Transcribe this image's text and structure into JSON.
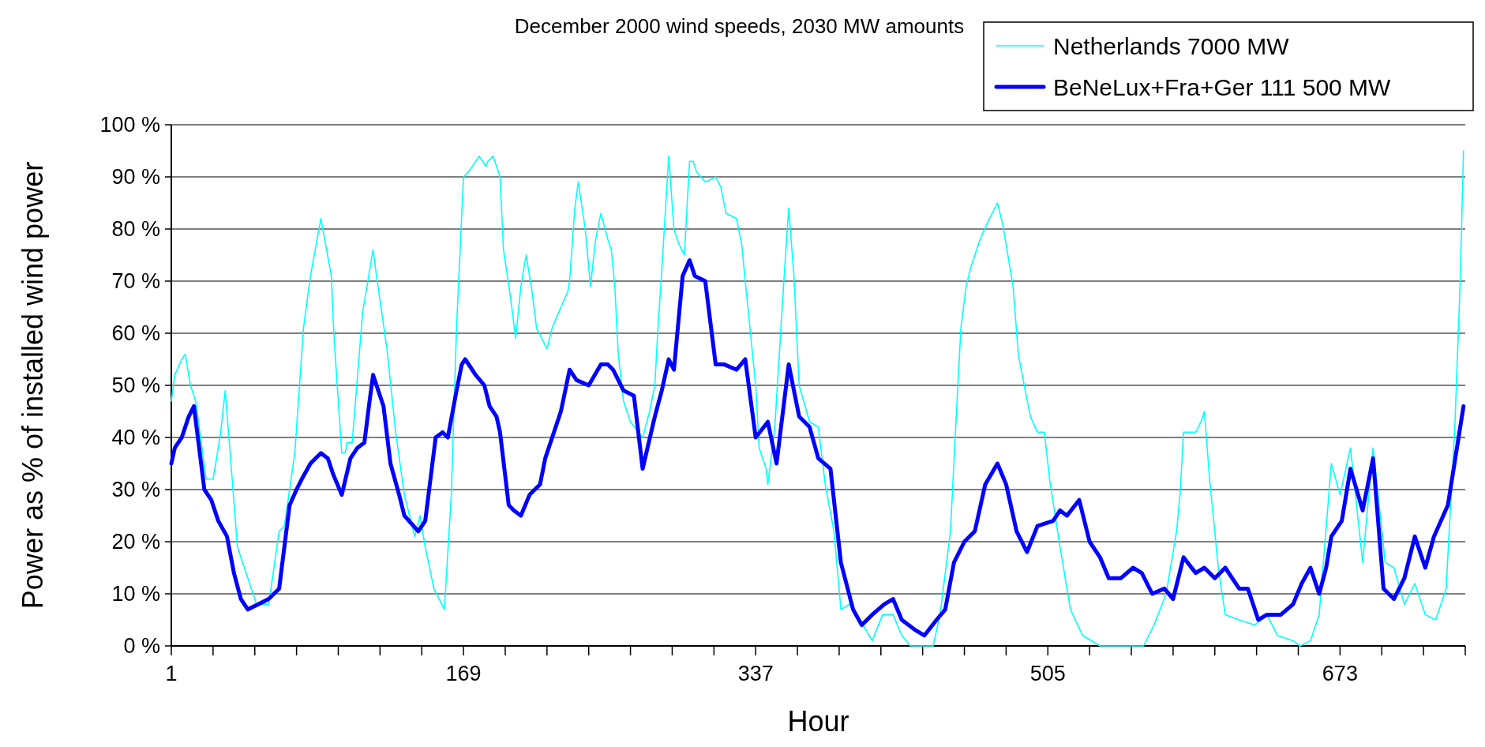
{
  "chart_data": {
    "type": "line",
    "title": "December 2000 wind speeds, 2030 MW amounts",
    "xlabel": "Hour",
    "ylabel": "Power as % of installed wind power",
    "xlim": [
      1,
      745
    ],
    "xticks": [
      1,
      {
        "value": 25,
        "label": null
      },
      {
        "value": 49,
        "label": null
      },
      {
        "value": 73,
        "label": null
      },
      {
        "value": 97,
        "label": null
      },
      {
        "value": 121,
        "label": null
      },
      {
        "value": 145,
        "label": null
      },
      169,
      {
        "value": 193,
        "label": null
      },
      {
        "value": 217,
        "label": null
      },
      {
        "value": 241,
        "label": null
      },
      {
        "value": 265,
        "label": null
      },
      {
        "value": 289,
        "label": null
      },
      {
        "value": 313,
        "label": null
      },
      337,
      {
        "value": 361,
        "label": null
      },
      {
        "value": 385,
        "label": null
      },
      {
        "value": 409,
        "label": null
      },
      {
        "value": 433,
        "label": null
      },
      {
        "value": 457,
        "label": null
      },
      {
        "value": 481,
        "label": null
      },
      505,
      {
        "value": 529,
        "label": null
      },
      {
        "value": 553,
        "label": null
      },
      {
        "value": 577,
        "label": null
      },
      {
        "value": 601,
        "label": null
      },
      {
        "value": 625,
        "label": null
      },
      {
        "value": 649,
        "label": null
      },
      673,
      {
        "value": 697,
        "label": null
      },
      {
        "value": 721,
        "label": null
      },
      {
        "value": 745,
        "label": null
      }
    ],
    "ylim": [
      0,
      100
    ],
    "yticks": [
      {
        "value": 0,
        "label": "0 %"
      },
      {
        "value": 10,
        "label": "10 %"
      },
      {
        "value": 20,
        "label": "20 %"
      },
      {
        "value": 30,
        "label": "30 %"
      },
      {
        "value": 40,
        "label": "40 %"
      },
      {
        "value": 50,
        "label": "50 %"
      },
      {
        "value": 60,
        "label": "60 %"
      },
      {
        "value": 70,
        "label": "70 %"
      },
      {
        "value": 80,
        "label": "80 %"
      },
      {
        "value": 90,
        "label": "90 %"
      },
      {
        "value": 100,
        "label": "100 %"
      }
    ],
    "grid": "y",
    "legend": "top right",
    "marker": "none",
    "series": [
      {
        "name": "Netherlands 7000 MW",
        "color": "#00ffff",
        "x": [
          1,
          3,
          7,
          9,
          12,
          15,
          21,
          25,
          29,
          32,
          36,
          39,
          44,
          48,
          50,
          57,
          63,
          66,
          72,
          77,
          81,
          87,
          93,
          94,
          95,
          99,
          101,
          102,
          105,
          111,
          115,
          117,
          119,
          125,
          130,
          135,
          138,
          141,
          144,
          147,
          152,
          158,
          162,
          165,
          169,
          172,
          176,
          178,
          182,
          183,
          186,
          190,
          192,
          196,
          199,
          202,
          205,
          208,
          211,
          214,
          217,
          220,
          225,
          229,
          230,
          233,
          235,
          239,
          242,
          245,
          248,
          252,
          254,
          256,
          258,
          261,
          265,
          272,
          276,
          279,
          281,
          283,
          287,
          290,
          293,
          296,
          299,
          301,
          303,
          308,
          314,
          317,
          320,
          326,
          329,
          331,
          334,
          337,
          339,
          343,
          344,
          348,
          353,
          356,
          359,
          362,
          368,
          373,
          377,
          382,
          386,
          391,
          397,
          404,
          410,
          416,
          421,
          426,
          439,
          443,
          449,
          452,
          455,
          458,
          461,
          466,
          470,
          476,
          479,
          485,
          488,
          492,
          495,
          499,
          503,
          506,
          512,
          518,
          525,
          535,
          560,
          566,
          573,
          579,
          581,
          583,
          590,
          593,
          595,
          598,
          603,
          607,
          615,
          624,
          631,
          637,
          646,
          650,
          656,
          661,
          668,
          673,
          679,
          686,
          692,
          699,
          704,
          710,
          716,
          722,
          728,
          734,
          739,
          742,
          744
        ],
        "values": [
          47,
          52,
          55,
          56,
          50,
          47,
          32,
          32,
          40,
          49,
          32,
          19,
          14,
          10,
          8,
          8,
          22,
          23,
          37,
          61,
          71,
          82,
          71,
          63,
          57,
          37,
          37,
          39,
          39,
          64,
          72,
          76,
          71,
          57,
          41,
          29,
          25,
          21,
          25,
          19,
          11,
          7,
          29,
          61,
          90,
          91,
          93,
          94,
          92,
          93,
          94,
          90,
          76,
          67,
          59,
          69,
          75,
          69,
          61,
          59,
          57,
          61,
          65,
          68,
          70,
          84,
          89,
          80,
          69,
          78,
          83,
          78,
          76,
          69,
          56,
          47,
          43,
          40,
          45,
          50,
          62,
          72,
          94,
          80,
          77,
          75,
          93,
          93,
          91,
          89,
          90,
          88,
          83,
          82,
          77,
          70,
          60,
          50,
          38,
          34,
          31,
          42,
          69,
          84,
          71,
          50,
          43,
          42,
          31,
          22,
          7,
          8,
          5,
          1,
          6,
          6,
          2,
          0,
          0,
          6,
          22,
          42,
          61,
          69,
          73,
          78,
          81,
          85,
          81,
          69,
          56,
          49,
          44,
          41,
          41,
          32,
          19,
          7,
          2,
          0,
          0,
          4,
          10,
          22,
          29,
          41,
          41,
          43,
          45,
          32,
          15,
          6,
          5,
          4,
          6,
          2,
          1,
          0,
          1,
          6,
          35,
          29,
          38,
          16,
          38,
          16,
          15,
          8,
          12,
          6,
          5,
          11,
          42,
          69,
          95
        ]
      },
      {
        "name": "BeNeLux+Fra+Ger 111 500 MW",
        "color": "#0000ff",
        "x": [
          1,
          3,
          7,
          11,
          14,
          20,
          24,
          28,
          33,
          37,
          41,
          45,
          51,
          57,
          63,
          66,
          69,
          73,
          76,
          81,
          87,
          91,
          94,
          99,
          104,
          108,
          112,
          115,
          117,
          123,
          127,
          132,
          135,
          143,
          147,
          150,
          153,
          157,
          160,
          165,
          168,
          170,
          176,
          181,
          184,
          188,
          190,
          195,
          198,
          202,
          207,
          213,
          216,
          220,
          225,
          230,
          234,
          241,
          248,
          252,
          255,
          261,
          267,
          272,
          279,
          283,
          287,
          290,
          295,
          299,
          302,
          308,
          314,
          319,
          326,
          331,
          337,
          344,
          349,
          356,
          362,
          368,
          373,
          380,
          386,
          393,
          398,
          404,
          411,
          416,
          421,
          429,
          434,
          441,
          446,
          451,
          457,
          463,
          465,
          469,
          476,
          481,
          487,
          493,
          499,
          508,
          512,
          516,
          523,
          529,
          535,
          540,
          547,
          554,
          559,
          565,
          572,
          577,
          583,
          590,
          595,
          601,
          607,
          615,
          620,
          626,
          631,
          639,
          646,
          651,
          656,
          661,
          665,
          668,
          674,
          679,
          686,
          692,
          698,
          704,
          710,
          716,
          722,
          727,
          735,
          744
        ],
        "values": [
          35,
          38,
          40,
          44,
          46,
          30,
          28,
          24,
          21,
          14,
          9,
          7,
          8,
          9,
          11,
          19,
          27,
          30,
          32,
          35,
          37,
          36,
          33,
          29,
          36,
          38,
          39,
          47,
          52,
          46,
          35,
          29,
          25,
          22,
          24,
          32,
          40,
          41,
          40,
          49,
          54,
          55,
          52,
          50,
          46,
          44,
          41,
          27,
          26,
          25,
          29,
          31,
          36,
          40,
          45,
          53,
          51,
          50,
          54,
          54,
          53,
          49,
          48,
          34,
          44,
          49,
          55,
          53,
          71,
          74,
          71,
          70,
          54,
          54,
          53,
          55,
          40,
          43,
          35,
          54,
          44,
          42,
          36,
          34,
          16,
          7,
          4,
          6,
          8,
          9,
          5,
          3,
          2,
          5,
          7,
          16,
          20,
          22,
          25,
          31,
          35,
          31,
          22,
          18,
          23,
          24,
          26,
          25,
          28,
          20,
          17,
          13,
          13,
          15,
          14,
          10,
          11,
          9,
          17,
          14,
          15,
          13,
          15,
          11,
          11,
          5,
          6,
          6,
          8,
          12,
          15,
          10,
          15,
          21,
          24,
          34,
          26,
          36,
          11,
          9,
          13,
          21,
          15,
          21,
          27,
          46
        ]
      }
    ]
  }
}
